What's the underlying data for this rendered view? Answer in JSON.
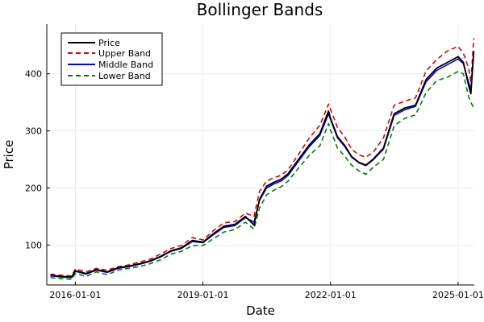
{
  "chart_data": {
    "type": "line",
    "title": "Bollinger Bands",
    "xlabel": "Date",
    "ylabel": "Price",
    "x_domain": [
      "2015-05-01",
      "2025-05-20"
    ],
    "ylim": [
      30,
      487
    ],
    "x_ticks": [
      "2016-01-01",
      "2019-01-01",
      "2022-01-01",
      "2025-01-01"
    ],
    "y_ticks": [
      100,
      200,
      300,
      400
    ],
    "grid": true,
    "legend_position": "top-left",
    "dates": [
      "2015-06-01",
      "2015-09-01",
      "2015-12-01",
      "2016-01-01",
      "2016-04-01",
      "2016-07-01",
      "2016-10-01",
      "2017-01-01",
      "2017-04-01",
      "2017-07-01",
      "2017-10-01",
      "2018-01-01",
      "2018-04-01",
      "2018-07-01",
      "2018-10-01",
      "2019-01-01",
      "2019-04-01",
      "2019-07-01",
      "2019-10-01",
      "2020-01-01",
      "2020-03-15",
      "2020-05-01",
      "2020-07-01",
      "2020-09-01",
      "2020-11-01",
      "2021-01-01",
      "2021-04-01",
      "2021-07-01",
      "2021-10-01",
      "2021-12-15",
      "2022-01-01",
      "2022-03-01",
      "2022-05-01",
      "2022-07-01",
      "2022-09-01",
      "2022-11-01",
      "2023-01-01",
      "2023-04-01",
      "2023-07-01",
      "2023-10-01",
      "2024-01-01",
      "2024-04-01",
      "2024-07-01",
      "2024-10-01",
      "2025-01-01",
      "2025-02-15",
      "2025-04-01",
      "2025-04-20",
      "2025-05-15"
    ],
    "series": [
      {
        "name": "Price",
        "color": "#000000",
        "dash": "solid",
        "values": [
          47,
          45,
          44,
          55,
          50,
          57,
          53,
          60,
          63,
          67,
          72,
          80,
          90,
          95,
          108,
          105,
          120,
          133,
          136,
          150,
          135,
          180,
          203,
          210,
          215,
          225,
          250,
          275,
          295,
          335,
          322,
          290,
          275,
          255,
          245,
          240,
          250,
          270,
          330,
          340,
          345,
          390,
          410,
          420,
          430,
          420,
          380,
          365,
          440
        ]
      },
      {
        "name": "Upper Band",
        "color": "#e00000",
        "dash": "dashed",
        "values": [
          49,
          47,
          46,
          58,
          53,
          59,
          56,
          62,
          65,
          70,
          75,
          84,
          94,
          99,
          113,
          109,
          125,
          139,
          141,
          156,
          150,
          194,
          212,
          218,
          222,
          232,
          259,
          287,
          310,
          347,
          338,
          306,
          290,
          268,
          258,
          254,
          262,
          288,
          345,
          352,
          358,
          405,
          425,
          440,
          448,
          436,
          410,
          385,
          462
        ]
      },
      {
        "name": "Middle Band",
        "color": "#0000ff",
        "dash": "solid",
        "values": [
          46,
          44,
          43,
          54,
          49,
          56,
          52,
          59,
          62,
          66,
          71,
          79,
          89,
          94,
          106,
          104,
          118,
          131,
          134,
          148,
          140,
          178,
          200,
          207,
          212,
          222,
          247,
          272,
          292,
          330,
          320,
          288,
          273,
          254,
          244,
          239,
          249,
          268,
          327,
          337,
          343,
          386,
          406,
          416,
          426,
          418,
          385,
          372,
          438
        ]
      },
      {
        "name": "Lower Band",
        "color": "#008000",
        "dash": "dashed",
        "values": [
          43,
          41,
          40,
          50,
          45,
          53,
          48,
          56,
          59,
          62,
          67,
          74,
          84,
          89,
          99,
          99,
          111,
          123,
          127,
          140,
          128,
          165,
          188,
          196,
          202,
          212,
          235,
          257,
          274,
          313,
          302,
          270,
          256,
          240,
          230,
          224,
          236,
          250,
          309,
          322,
          328,
          367,
          388,
          394,
          404,
          400,
          360,
          350,
          340
        ]
      }
    ]
  }
}
